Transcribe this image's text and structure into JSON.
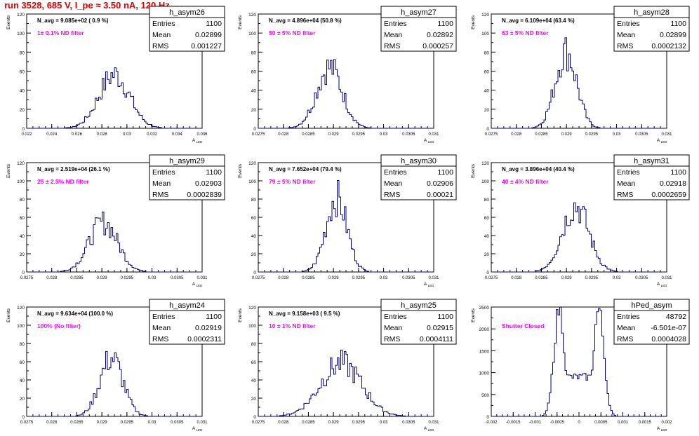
{
  "run_title": "run 3528,   685 V, I_pe ≈ 3.50 nA, 120 Hz",
  "chart_data": [
    {
      "type": "bar",
      "name": "h_asym26",
      "navg": "N_avg = 9.085e+02 ( 0.9 %)",
      "filter": "1± 0.1% ND filter",
      "stats": {
        "Entries": "1100",
        "Mean": "0.02899",
        "RMS": "0.001227"
      },
      "ylabel": "Events",
      "xlabel": "A_LED",
      "xlim": [
        0.022,
        0.036
      ],
      "ylim": [
        0,
        120
      ],
      "yticks": [
        0,
        20,
        40,
        60,
        80,
        100,
        120
      ],
      "xticks": [
        "0.022",
        "0.024",
        "0.026",
        "0.028",
        "0.03",
        "0.032",
        "0.034",
        "0.036"
      ],
      "mean": 0.02899,
      "rms": 0.001227,
      "peak": 58
    },
    {
      "type": "bar",
      "name": "h_asym27",
      "navg": "N_avg = 4.896e+04 (50.8 %)",
      "filter": "50 ± 5% ND filter",
      "stats": {
        "Entries": "1100",
        "Mean": "0.02892",
        "RMS": "0.000257"
      },
      "ylabel": "Events",
      "xlabel": "A_LED",
      "xlim": [
        0.0275,
        0.031
      ],
      "ylim": [
        0,
        120
      ],
      "yticks": [
        0,
        20,
        40,
        60,
        80,
        100,
        120
      ],
      "xticks": [
        "0.0275",
        "0.028",
        "0.0285",
        "0.029",
        "0.0295",
        "0.03",
        "0.0305",
        "0.031"
      ],
      "mean": 0.02892,
      "rms": 0.000257,
      "peak": 66
    },
    {
      "type": "bar",
      "name": "h_asym28",
      "navg": "N_avg = 6.109e+04 (63.4 %)",
      "filter": "63 ± 5% ND filter",
      "stats": {
        "Entries": "1100",
        "Mean": "0.02899",
        "RMS": "0.0002132"
      },
      "ylabel": "Events",
      "xlabel": "A_LED",
      "xlim": [
        0.0275,
        0.031
      ],
      "ylim": [
        0,
        120
      ],
      "yticks": [
        0,
        20,
        40,
        60,
        80,
        100,
        120
      ],
      "xticks": [
        "0.0275",
        "0.028",
        "0.0285",
        "0.029",
        "0.0295",
        "0.03",
        "0.0305",
        "0.031"
      ],
      "mean": 0.02899,
      "rms": 0.0002132,
      "peak": 83
    },
    {
      "type": "bar",
      "name": "h_asym29",
      "navg": "N_avg = 2.519e+04 (26.1 %)",
      "filter": "25 ± 2.5% ND filter",
      "stats": {
        "Entries": "1100",
        "Mean": "0.02903",
        "RMS": "0.0002839"
      },
      "ylabel": "Events",
      "xlabel": "A_LED",
      "xlim": [
        0.0275,
        0.031
      ],
      "ylim": [
        0,
        120
      ],
      "yticks": [
        0,
        20,
        40,
        60,
        80,
        100,
        120
      ],
      "xticks": [
        "0.0275",
        "0.028",
        "0.0285",
        "0.029",
        "0.0295",
        "0.03",
        "0.0305",
        "0.031"
      ],
      "mean": 0.02903,
      "rms": 0.0002839,
      "peak": 56
    },
    {
      "type": "bar",
      "name": "h_asym30",
      "navg": "N_avg = 7.652e+04 (79.4 %)",
      "filter": "79 ± 5% ND filter",
      "stats": {
        "Entries": "1100",
        "Mean": "0.02906",
        "RMS": "0.00021"
      },
      "ylabel": "Events",
      "xlabel": "A_LED",
      "xlim": [
        0.0275,
        0.031
      ],
      "ylim": [
        0,
        120
      ],
      "yticks": [
        0,
        20,
        40,
        60,
        80,
        100,
        120
      ],
      "xticks": [
        "0.0275",
        "0.028",
        "0.0285",
        "0.029",
        "0.0295",
        "0.03",
        "0.0305",
        "0.031"
      ],
      "mean": 0.02906,
      "rms": 0.00021,
      "peak": 84
    },
    {
      "type": "bar",
      "name": "h_asym31",
      "navg": "N_avg = 3.896e+04 (40.4 %)",
      "filter": "40 ± 4% ND filter",
      "stats": {
        "Entries": "1100",
        "Mean": "0.02918",
        "RMS": "0.0002659"
      },
      "ylabel": "Events",
      "xlabel": "A_LED",
      "xlim": [
        0.0275,
        0.031
      ],
      "ylim": [
        0,
        120
      ],
      "yticks": [
        0,
        20,
        40,
        60,
        80,
        100,
        120
      ],
      "xticks": [
        "0.0275",
        "0.028",
        "0.0285",
        "0.029",
        "0.0295",
        "0.03",
        "0.0305",
        "0.031"
      ],
      "mean": 0.02918,
      "rms": 0.0002659,
      "peak": 75
    },
    {
      "type": "bar",
      "name": "h_asym24",
      "navg": "N_avg = 9.634e+04 (100.0 %)",
      "filter": "100% (No filter)",
      "stats": {
        "Entries": "1100",
        "Mean": "0.02919",
        "RMS": "0.0002311"
      },
      "ylabel": "Events",
      "xlabel": "A_LED",
      "xlim": [
        0.0275,
        0.031
      ],
      "ylim": [
        0,
        120
      ],
      "yticks": [
        0,
        20,
        40,
        60,
        80,
        100,
        120
      ],
      "xticks": [
        "0.0275",
        "0.028",
        "0.0285",
        "0.029",
        "0.0295",
        "0.03",
        "0.0305",
        "0.031"
      ],
      "mean": 0.02919,
      "rms": 0.0002311,
      "peak": 66
    },
    {
      "type": "bar",
      "name": "h_asym25",
      "navg": "N_avg = 9.158e+03 ( 9.5 %)",
      "filter": "10 ± 1% ND filter",
      "stats": {
        "Entries": "1100",
        "Mean": "0.02915",
        "RMS": "0.0004111"
      },
      "ylabel": "Events",
      "xlabel": "A_LED",
      "xlim": [
        0.0275,
        0.031
      ],
      "ylim": [
        0,
        120
      ],
      "yticks": [
        0,
        20,
        40,
        60,
        80,
        100,
        120
      ],
      "xticks": [
        "0.0275",
        "0.028",
        "0.0285",
        "0.029",
        "0.0295",
        "0.03",
        "0.0305",
        "0.031"
      ],
      "mean": 0.02915,
      "rms": 0.0004111,
      "peak": 60
    },
    {
      "type": "bar",
      "name": "hPed_asym",
      "navg": "",
      "filter": "Shutter Closed",
      "stats": {
        "Entries": "48792",
        "Mean": "-6.501e-07",
        "RMS": "0.0004028"
      },
      "ylabel": "Events",
      "xlabel": "A_LED",
      "xlim": [
        -0.002,
        0.002
      ],
      "ylim": [
        0,
        2500
      ],
      "yticks": [
        0,
        500,
        1000,
        1500,
        2000,
        2500
      ],
      "xticks": [
        "-0.002",
        "-0.0015",
        "-0.001",
        "-0.0005",
        "0",
        "0.0005",
        "0.001",
        "0.0015",
        "0.002"
      ],
      "bimodal": true,
      "peak_pos": [
        -0.00045,
        0.00045
      ],
      "peak": 2450,
      "valley": 900
    }
  ],
  "colors": {
    "hist": "#000080",
    "title": "#e00000",
    "filter_text": "#ff00ff"
  }
}
